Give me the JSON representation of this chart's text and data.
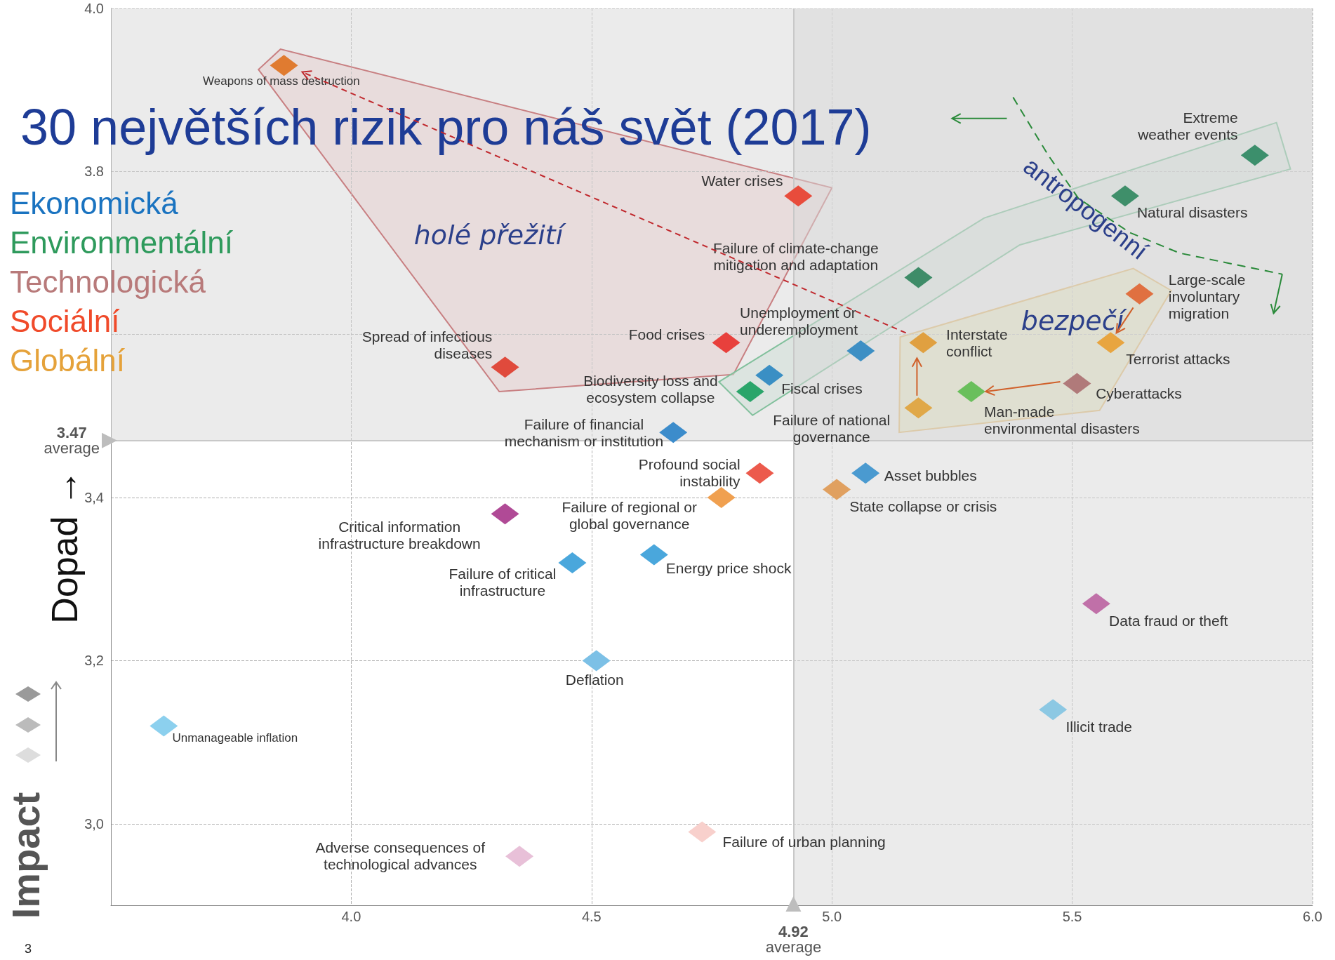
{
  "chart_data": {
    "type": "scatter",
    "title": "30 největších rizik pro náš svět (2017)",
    "ylabel": "Dopad →",
    "xlim": [
      3.5,
      6.0
    ],
    "ylim": [
      2.9,
      4.0
    ],
    "xticks": [
      {
        "value": 4,
        "label": "4.0"
      },
      {
        "value": 4.5,
        "label": "4.5"
      },
      {
        "value": 5,
        "label": "5.0"
      },
      {
        "value": 5.5,
        "label": "5.5"
      },
      {
        "value": 6,
        "label": "6.0"
      }
    ],
    "yticks": [
      {
        "value": 3,
        "label": "3,0"
      },
      {
        "value": 3.2,
        "label": "3,2"
      },
      {
        "value": 3.4,
        "label": "3,4"
      },
      {
        "value": 3.6,
        "label": null
      },
      {
        "value": 3.8,
        "label": "3.8"
      },
      {
        "value": 4,
        "label": "4.0"
      }
    ],
    "grid": true,
    "legend": "left",
    "marker": "diamond",
    "series": [
      {
        "name": "Ekonomická",
        "color": "#1a73c0",
        "x": [
          5.06,
          4.87,
          4.67,
          5.07,
          4.46,
          4.63,
          4.51,
          5.46,
          3.61
        ],
        "values": [
          3.58,
          3.55,
          3.48,
          3.43,
          3.32,
          3.33,
          3.2,
          3.14,
          3.12
        ],
        "colors": [
          "#3d8fc4",
          "#3a8fc4",
          "#3c8ccb",
          "#4a9ad0",
          "#4aa7dc",
          "#4aa7dc",
          "#7cc0e6",
          "#8cc8e3",
          "#8cd0ee"
        ]
      },
      {
        "name": "Environmentální",
        "color": "#2e9a5c",
        "x": [
          5.88,
          5.61,
          5.18,
          4.83,
          5.29
        ],
        "values": [
          3.82,
          3.77,
          3.67,
          3.53,
          3.53
        ],
        "colors": [
          "#3c8f6c",
          "#3f8f6a",
          "#3e8c68",
          "#2aa56a",
          "#6abf5c"
        ]
      },
      {
        "name": "Technologická",
        "color": "#b87a7a",
        "x": [
          5.51,
          5.55,
          4.32,
          4.35
        ],
        "values": [
          3.54,
          3.27,
          3.38,
          2.96
        ],
        "colors": [
          "#b07a7a",
          "#c070a8",
          "#b04a96",
          "#e8c0d8"
        ]
      },
      {
        "name": "Sociální",
        "color": "#f04a2a",
        "x": [
          4.93,
          4.78,
          4.32,
          5.64,
          4.85,
          4.73
        ],
        "values": [
          3.77,
          3.59,
          3.56,
          3.65,
          3.43,
          2.99
        ],
        "colors": [
          "#e84c3c",
          "#e8403c",
          "#e04a3c",
          "#e07040",
          "#ec5a4c",
          "#f8d0cc"
        ]
      },
      {
        "name": "Globální",
        "color": "#e5a23a",
        "x": [
          3.86,
          5.19,
          5.58,
          5.18,
          5.01,
          4.77
        ],
        "values": [
          3.93,
          3.59,
          3.59,
          3.51,
          3.41,
          3.4
        ],
        "colors": [
          "#e07b30",
          "#e0a040",
          "#e8a540",
          "#e0a848",
          "#e0a060",
          "#f0a050"
        ]
      }
    ],
    "ref_lines": [
      {
        "axis": "y",
        "value": 3.47,
        "label": "3.47\naverage"
      },
      {
        "axis": "x",
        "value": 4.92,
        "label": "4.92\naverage"
      }
    ],
    "bands": [
      {
        "axis": "y",
        "from": 3.47,
        "to": 4.0,
        "color": "#d8d8d8"
      },
      {
        "axis": "x",
        "from": 4.92,
        "to": 6.0,
        "color": "#d8d8d8"
      }
    ],
    "annotations": [
      {
        "text": "Unemployment or\nunderemployment",
        "x": 5.06,
        "y": 3.58
      },
      {
        "text": "Fiscal crises",
        "x": 4.87,
        "y": 3.55
      },
      {
        "text": "Failure of financial\nmechanism or institution",
        "x": 4.67,
        "y": 3.48
      },
      {
        "text": "Asset bubbles",
        "x": 5.07,
        "y": 3.43
      },
      {
        "text": "Failure of critical\ninfrastructure",
        "x": 4.46,
        "y": 3.32
      },
      {
        "text": "Energy price shock",
        "x": 4.63,
        "y": 3.33
      },
      {
        "text": "Deflation",
        "x": 4.51,
        "y": 3.2
      },
      {
        "text": "Illicit trade",
        "x": 5.46,
        "y": 3.14
      },
      {
        "text": "Unmanageable inflation",
        "x": 3.61,
        "y": 3.12
      },
      {
        "text": "Extreme\nweather events",
        "x": 5.88,
        "y": 3.82
      },
      {
        "text": "Natural disasters",
        "x": 5.61,
        "y": 3.77
      },
      {
        "text": "Failure of climate-change\nmitigation and adaptation",
        "x": 5.18,
        "y": 3.67
      },
      {
        "text": "Biodiversity loss and\necosystem collapse",
        "x": 4.83,
        "y": 3.53
      },
      {
        "text": "Man-made\nenvironmental disasters",
        "x": 5.29,
        "y": 3.53
      },
      {
        "text": "Cyberattacks",
        "x": 5.51,
        "y": 3.54
      },
      {
        "text": "Data fraud or theft",
        "x": 5.55,
        "y": 3.27
      },
      {
        "text": "Critical information\ninfrastructure breakdown",
        "x": 4.32,
        "y": 3.38
      },
      {
        "text": "Adverse consequences of\ntechnological advances",
        "x": 4.35,
        "y": 2.96
      },
      {
        "text": "Water crises",
        "x": 4.93,
        "y": 3.77
      },
      {
        "text": "Food crises",
        "x": 4.78,
        "y": 3.59
      },
      {
        "text": "Spread of infectious\ndiseases",
        "x": 4.32,
        "y": 3.56
      },
      {
        "text": "Large-scale\ninvoluntary\nmigration",
        "x": 5.64,
        "y": 3.65
      },
      {
        "text": "Profound social\ninstability",
        "x": 4.85,
        "y": 3.43
      },
      {
        "text": "Failure of urban planning",
        "x": 4.73,
        "y": 2.99
      },
      {
        "text": "Weapons of mass destruction",
        "x": 3.86,
        "y": 3.93
      },
      {
        "text": "Interstate\nconflict",
        "x": 5.19,
        "y": 3.59
      },
      {
        "text": "Terrorist attacks",
        "x": 5.58,
        "y": 3.59
      },
      {
        "text": "Failure of national\ngovernance",
        "x": 5.18,
        "y": 3.51
      },
      {
        "text": "State collapse or crisis",
        "x": 5.01,
        "y": 3.41
      },
      {
        "text": "Failure of regional or\nglobal governance",
        "x": 4.77,
        "y": 3.4
      },
      "holé přežití",
      "bezpečí",
      "antropogenní",
      "Impact",
      "3"
    ]
  }
}
